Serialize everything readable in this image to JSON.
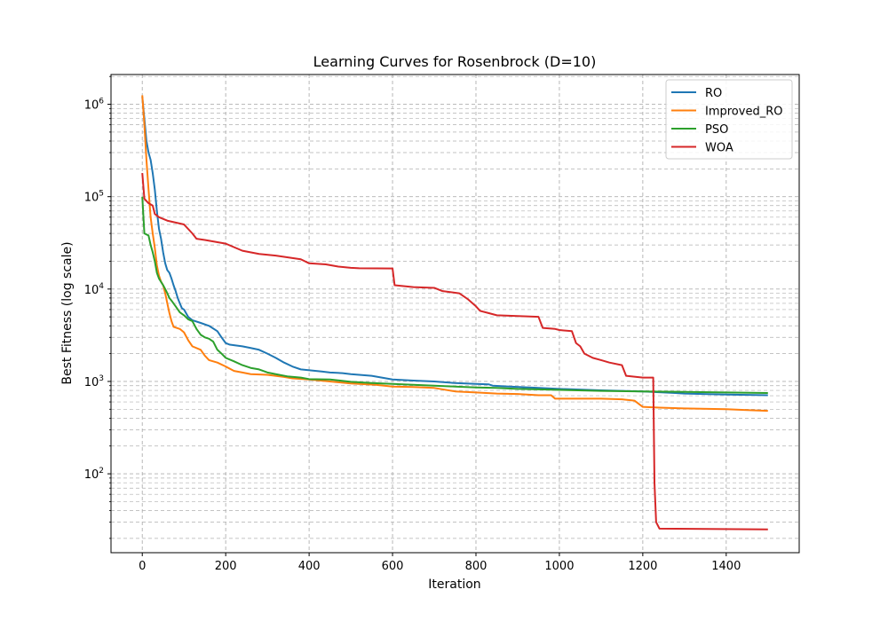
{
  "chart_data": {
    "type": "line",
    "title": "Learning Curves for Rosenbrock (D=10)",
    "xlabel": "Iteration",
    "ylabel": "Best Fitness (log scale)",
    "xlim": [
      -75,
      1575
    ],
    "ylim": [
      14,
      2100000
    ],
    "y_scale": "log",
    "grid": "major and minor, dashed",
    "legend_position": "top-right",
    "x_ticks": [
      0,
      200,
      400,
      600,
      800,
      1000,
      1200,
      1400
    ],
    "x_tick_labels": [
      "0",
      "200",
      "400",
      "600",
      "800",
      "1000",
      "1200",
      "1400"
    ],
    "y_ticks": [
      100,
      1000,
      10000,
      100000,
      1000000
    ],
    "y_tick_labels": [
      {
        "base": "10",
        "exp": "2"
      },
      {
        "base": "10",
        "exp": "3"
      },
      {
        "base": "10",
        "exp": "4"
      },
      {
        "base": "10",
        "exp": "5"
      },
      {
        "base": "10",
        "exp": "6"
      }
    ],
    "series": [
      {
        "name": "RO",
        "color": "#1f77b4",
        "points": [
          [
            0,
            1200000
          ],
          [
            5,
            700000
          ],
          [
            10,
            400000
          ],
          [
            15,
            300000
          ],
          [
            20,
            250000
          ],
          [
            25,
            180000
          ],
          [
            30,
            120000
          ],
          [
            35,
            70000
          ],
          [
            40,
            45000
          ],
          [
            45,
            35000
          ],
          [
            50,
            25000
          ],
          [
            55,
            19000
          ],
          [
            60,
            16000
          ],
          [
            65,
            15000
          ],
          [
            70,
            13000
          ],
          [
            75,
            11000
          ],
          [
            80,
            9500
          ],
          [
            85,
            8000
          ],
          [
            90,
            7000
          ],
          [
            95,
            6200
          ],
          [
            100,
            6000
          ],
          [
            110,
            5000
          ],
          [
            120,
            4600
          ],
          [
            140,
            4300
          ],
          [
            160,
            4000
          ],
          [
            180,
            3500
          ],
          [
            190,
            3000
          ],
          [
            200,
            2600
          ],
          [
            210,
            2500
          ],
          [
            240,
            2400
          ],
          [
            260,
            2300
          ],
          [
            280,
            2200
          ],
          [
            300,
            2000
          ],
          [
            320,
            1800
          ],
          [
            340,
            1600
          ],
          [
            360,
            1450
          ],
          [
            380,
            1350
          ],
          [
            430,
            1280
          ],
          [
            450,
            1250
          ],
          [
            480,
            1230
          ],
          [
            500,
            1200
          ],
          [
            550,
            1150
          ],
          [
            600,
            1050
          ],
          [
            650,
            1020
          ],
          [
            700,
            1000
          ],
          [
            750,
            960
          ],
          [
            800,
            940
          ],
          [
            830,
            930
          ],
          [
            840,
            900
          ],
          [
            880,
            880
          ],
          [
            950,
            850
          ],
          [
            1000,
            830
          ],
          [
            1100,
            800
          ],
          [
            1200,
            780
          ],
          [
            1300,
            740
          ],
          [
            1400,
            720
          ],
          [
            1500,
            710
          ]
        ]
      },
      {
        "name": "Improved_RO",
        "color": "#ff7f0e",
        "points": [
          [
            0,
            1250000
          ],
          [
            5,
            600000
          ],
          [
            10,
            250000
          ],
          [
            15,
            120000
          ],
          [
            20,
            60000
          ],
          [
            25,
            40000
          ],
          [
            30,
            28000
          ],
          [
            35,
            18000
          ],
          [
            40,
            14000
          ],
          [
            45,
            12000
          ],
          [
            50,
            11000
          ],
          [
            55,
            9000
          ],
          [
            60,
            7000
          ],
          [
            65,
            5500
          ],
          [
            70,
            4500
          ],
          [
            75,
            3900
          ],
          [
            90,
            3700
          ],
          [
            100,
            3400
          ],
          [
            110,
            2800
          ],
          [
            120,
            2400
          ],
          [
            140,
            2200
          ],
          [
            150,
            1900
          ],
          [
            160,
            1700
          ],
          [
            180,
            1600
          ],
          [
            200,
            1450
          ],
          [
            220,
            1300
          ],
          [
            240,
            1250
          ],
          [
            260,
            1200
          ],
          [
            300,
            1180
          ],
          [
            340,
            1120
          ],
          [
            360,
            1080
          ],
          [
            400,
            1050
          ],
          [
            450,
            1000
          ],
          [
            500,
            950
          ],
          [
            560,
            920
          ],
          [
            600,
            880
          ],
          [
            650,
            870
          ],
          [
            700,
            850
          ],
          [
            750,
            780
          ],
          [
            800,
            760
          ],
          [
            850,
            740
          ],
          [
            900,
            730
          ],
          [
            950,
            710
          ],
          [
            980,
            710
          ],
          [
            990,
            650
          ],
          [
            1100,
            650
          ],
          [
            1150,
            640
          ],
          [
            1180,
            620
          ],
          [
            1200,
            530
          ],
          [
            1240,
            520
          ],
          [
            1300,
            510
          ],
          [
            1400,
            500
          ],
          [
            1450,
            490
          ],
          [
            1500,
            480
          ]
        ]
      },
      {
        "name": "PSO",
        "color": "#2ca02c",
        "points": [
          [
            0,
            100000
          ],
          [
            5,
            40000
          ],
          [
            15,
            38000
          ],
          [
            20,
            30000
          ],
          [
            25,
            25000
          ],
          [
            30,
            20000
          ],
          [
            35,
            15000
          ],
          [
            40,
            13000
          ],
          [
            50,
            11000
          ],
          [
            55,
            10000
          ],
          [
            60,
            9000
          ],
          [
            65,
            8000
          ],
          [
            70,
            7500
          ],
          [
            80,
            6500
          ],
          [
            90,
            5600
          ],
          [
            100,
            5200
          ],
          [
            110,
            4700
          ],
          [
            120,
            4500
          ],
          [
            130,
            3700
          ],
          [
            140,
            3200
          ],
          [
            150,
            3000
          ],
          [
            160,
            2900
          ],
          [
            170,
            2700
          ],
          [
            180,
            2200
          ],
          [
            190,
            2000
          ],
          [
            200,
            1800
          ],
          [
            220,
            1650
          ],
          [
            240,
            1500
          ],
          [
            260,
            1400
          ],
          [
            280,
            1350
          ],
          [
            300,
            1250
          ],
          [
            320,
            1200
          ],
          [
            350,
            1130
          ],
          [
            380,
            1100
          ],
          [
            400,
            1060
          ],
          [
            450,
            1050
          ],
          [
            500,
            990
          ],
          [
            550,
            960
          ],
          [
            600,
            940
          ],
          [
            650,
            920
          ],
          [
            700,
            900
          ],
          [
            750,
            880
          ],
          [
            800,
            860
          ],
          [
            850,
            850
          ],
          [
            900,
            830
          ],
          [
            950,
            820
          ],
          [
            1000,
            810
          ],
          [
            1100,
            790
          ],
          [
            1200,
            780
          ],
          [
            1300,
            770
          ],
          [
            1400,
            760
          ],
          [
            1500,
            750
          ]
        ]
      },
      {
        "name": "WOA",
        "color": "#d62728",
        "points": [
          [
            0,
            180000
          ],
          [
            5,
            95000
          ],
          [
            15,
            85000
          ],
          [
            25,
            80000
          ],
          [
            30,
            65000
          ],
          [
            40,
            60000
          ],
          [
            60,
            55000
          ],
          [
            100,
            50000
          ],
          [
            120,
            40000
          ],
          [
            130,
            35000
          ],
          [
            150,
            34000
          ],
          [
            200,
            31000
          ],
          [
            240,
            26000
          ],
          [
            280,
            24000
          ],
          [
            320,
            23000
          ],
          [
            380,
            21000
          ],
          [
            400,
            19000
          ],
          [
            440,
            18500
          ],
          [
            470,
            17500
          ],
          [
            500,
            17000
          ],
          [
            520,
            16800
          ],
          [
            600,
            16700
          ],
          [
            605,
            11000
          ],
          [
            650,
            10500
          ],
          [
            700,
            10300
          ],
          [
            720,
            9500
          ],
          [
            760,
            9000
          ],
          [
            780,
            7800
          ],
          [
            800,
            6500
          ],
          [
            810,
            5800
          ],
          [
            830,
            5500
          ],
          [
            850,
            5200
          ],
          [
            900,
            5100
          ],
          [
            950,
            5000
          ],
          [
            960,
            3800
          ],
          [
            990,
            3700
          ],
          [
            1000,
            3600
          ],
          [
            1030,
            3500
          ],
          [
            1040,
            2600
          ],
          [
            1050,
            2400
          ],
          [
            1060,
            2000
          ],
          [
            1080,
            1800
          ],
          [
            1100,
            1700
          ],
          [
            1120,
            1600
          ],
          [
            1150,
            1500
          ],
          [
            1160,
            1150
          ],
          [
            1200,
            1100
          ],
          [
            1220,
            1100
          ],
          [
            1225,
            1100
          ],
          [
            1228,
            80
          ],
          [
            1232,
            30
          ],
          [
            1240,
            25.5
          ],
          [
            1500,
            25
          ]
        ]
      }
    ]
  }
}
